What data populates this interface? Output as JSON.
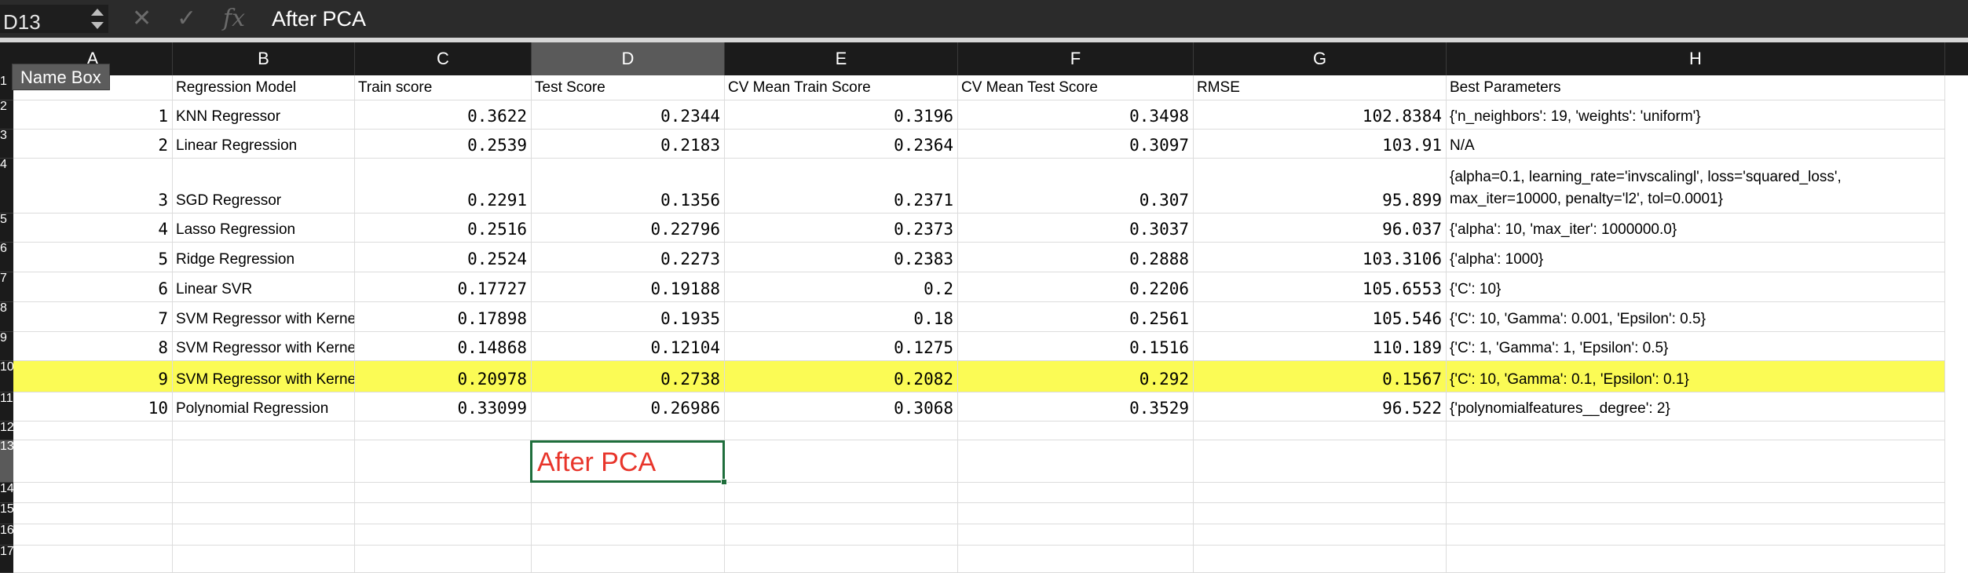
{
  "formula_bar": {
    "name_box": "D13",
    "formula": "After PCA"
  },
  "tooltip": "Name Box",
  "columns": [
    {
      "letter": "A"
    },
    {
      "letter": "B"
    },
    {
      "letter": "C"
    },
    {
      "letter": "D"
    },
    {
      "letter": "E"
    },
    {
      "letter": "F"
    },
    {
      "letter": "G"
    },
    {
      "letter": "H"
    }
  ],
  "selected_column": "D",
  "row_numbers": [
    "1",
    "2",
    "3",
    "4",
    "5",
    "6",
    "7",
    "8",
    "9",
    "10",
    "11",
    "12",
    "13",
    "14",
    "15",
    "16",
    "17"
  ],
  "header_row": {
    "a": "",
    "model": "Regression Model",
    "train": "Train score",
    "test": "Test Score",
    "cv_train": "CV Mean Train Score",
    "cv_test": "CV Mean Test Score",
    "rmse": "RMSE",
    "params": "Best Parameters"
  },
  "rows": [
    {
      "idx": "1",
      "model": "KNN Regressor",
      "train": "0.3622",
      "test": "0.2344",
      "cv_train": "0.3196",
      "cv_test": "0.3498",
      "rmse": "102.8384",
      "params": "{'n_neighbors': 19, 'weights': 'uniform'}"
    },
    {
      "idx": "2",
      "model": "Linear Regression",
      "train": "0.2539",
      "test": "0.2183",
      "cv_train": "0.2364",
      "cv_test": "0.3097",
      "rmse": "103.91",
      "params": "N/A"
    },
    {
      "idx": "3",
      "model": "SGD Regressor",
      "train": "0.2291",
      "test": "0.1356",
      "cv_train": "0.2371",
      "cv_test": "0.307",
      "rmse": "95.899",
      "params": "{alpha=0.1, learning_rate='invscalingl', loss='squared_loss', max_iter=10000, penalty='l2', tol=0.0001}"
    },
    {
      "idx": "4",
      "model": "Lasso Regression",
      "train": "0.2516",
      "test": "0.22796",
      "cv_train": "0.2373",
      "cv_test": "0.3037",
      "rmse": "96.037",
      "params": "{'alpha': 10, 'max_iter': 1000000.0}"
    },
    {
      "idx": "5",
      "model": "Ridge Regression",
      "train": "0.2524",
      "test": "0.2273",
      "cv_train": "0.2383",
      "cv_test": "0.2888",
      "rmse": "103.3106",
      "params": "{'alpha': 1000}"
    },
    {
      "idx": "6",
      "model": "Linear SVR",
      "train": "0.17727",
      "test": "0.19188",
      "cv_train": "0.2",
      "cv_test": "0.2206",
      "rmse": "105.6553",
      "params": "{'C': 10}"
    },
    {
      "idx": "7",
      "model": "SVM Regressor with Kerne",
      "train": "0.17898",
      "test": "0.1935",
      "cv_train": "0.18",
      "cv_test": "0.2561",
      "rmse": "105.546",
      "params": "{'C': 10, 'Gamma': 0.001, 'Epsilon': 0.5}"
    },
    {
      "idx": "8",
      "model": "SVM Regressor with Kerne",
      "train": "0.14868",
      "test": "0.12104",
      "cv_train": "0.1275",
      "cv_test": "0.1516",
      "rmse": "110.189",
      "params": "{'C': 1, 'Gamma': 1, 'Epsilon': 0.5}"
    },
    {
      "idx": "9",
      "model": "SVM Regressor with Kerne",
      "train": "0.20978",
      "test": "0.2738",
      "cv_train": "0.2082",
      "cv_test": "0.292",
      "rmse": "0.1567",
      "params": "{'C': 10, 'Gamma': 0.1, 'Epsilon': 0.1}"
    },
    {
      "idx": "10",
      "model": "Polynomial Regression",
      "train": "0.33099",
      "test": "0.26986",
      "cv_train": "0.3068",
      "cv_test": "0.3529",
      "rmse": "96.522",
      "params": "{'polynomialfeatures__degree': 2}"
    }
  ],
  "active_cell_text": "After PCA",
  "colors": {
    "highlight_row": "#fbfb55",
    "active_cell_border": "#1f6e3c",
    "active_cell_text": "#e8352b"
  }
}
